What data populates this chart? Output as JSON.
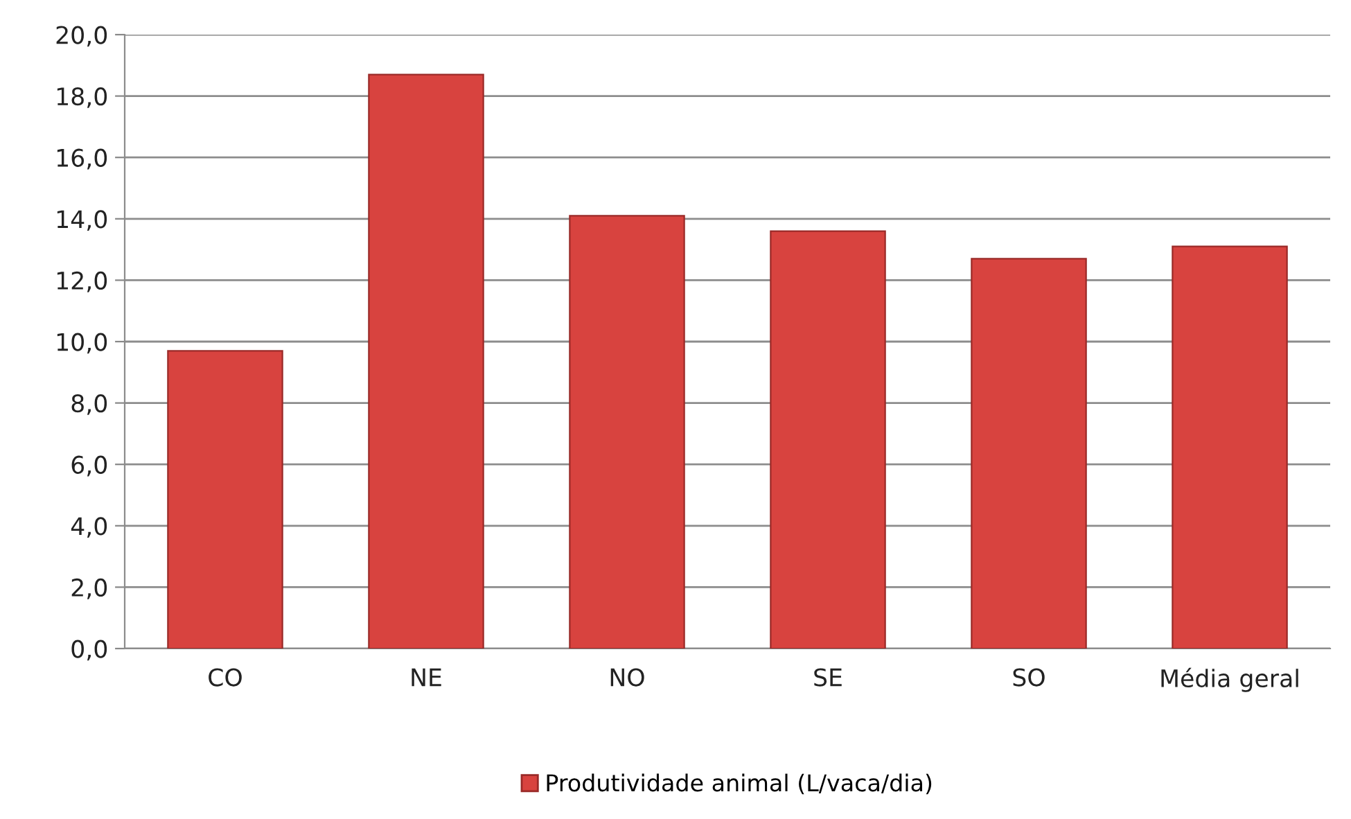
{
  "chart_data": {
    "type": "bar",
    "categories": [
      "CO",
      "NE",
      "NO",
      "SE",
      "SO",
      "Média geral"
    ],
    "series": [
      {
        "name": "Produtividade animal (L/vaca/dia)",
        "color": "#d8433f",
        "values": [
          9.7,
          18.7,
          14.1,
          13.6,
          12.7,
          13.1
        ]
      }
    ],
    "ylim": [
      0,
      20
    ],
    "yticks": [
      {
        "value": 0,
        "label": "0,0"
      },
      {
        "value": 2,
        "label": "2,0"
      },
      {
        "value": 4,
        "label": "4,0"
      },
      {
        "value": 6,
        "label": "6,0"
      },
      {
        "value": 8,
        "label": "8,0"
      },
      {
        "value": 10,
        "label": "10,0"
      },
      {
        "value": 12,
        "label": "12,0"
      },
      {
        "value": 14,
        "label": "14,0"
      },
      {
        "value": 16,
        "label": "16,0"
      },
      {
        "value": 18,
        "label": "18,0"
      },
      {
        "value": 20,
        "label": "20,0"
      }
    ],
    "grid": "y",
    "legend": "bottom"
  }
}
